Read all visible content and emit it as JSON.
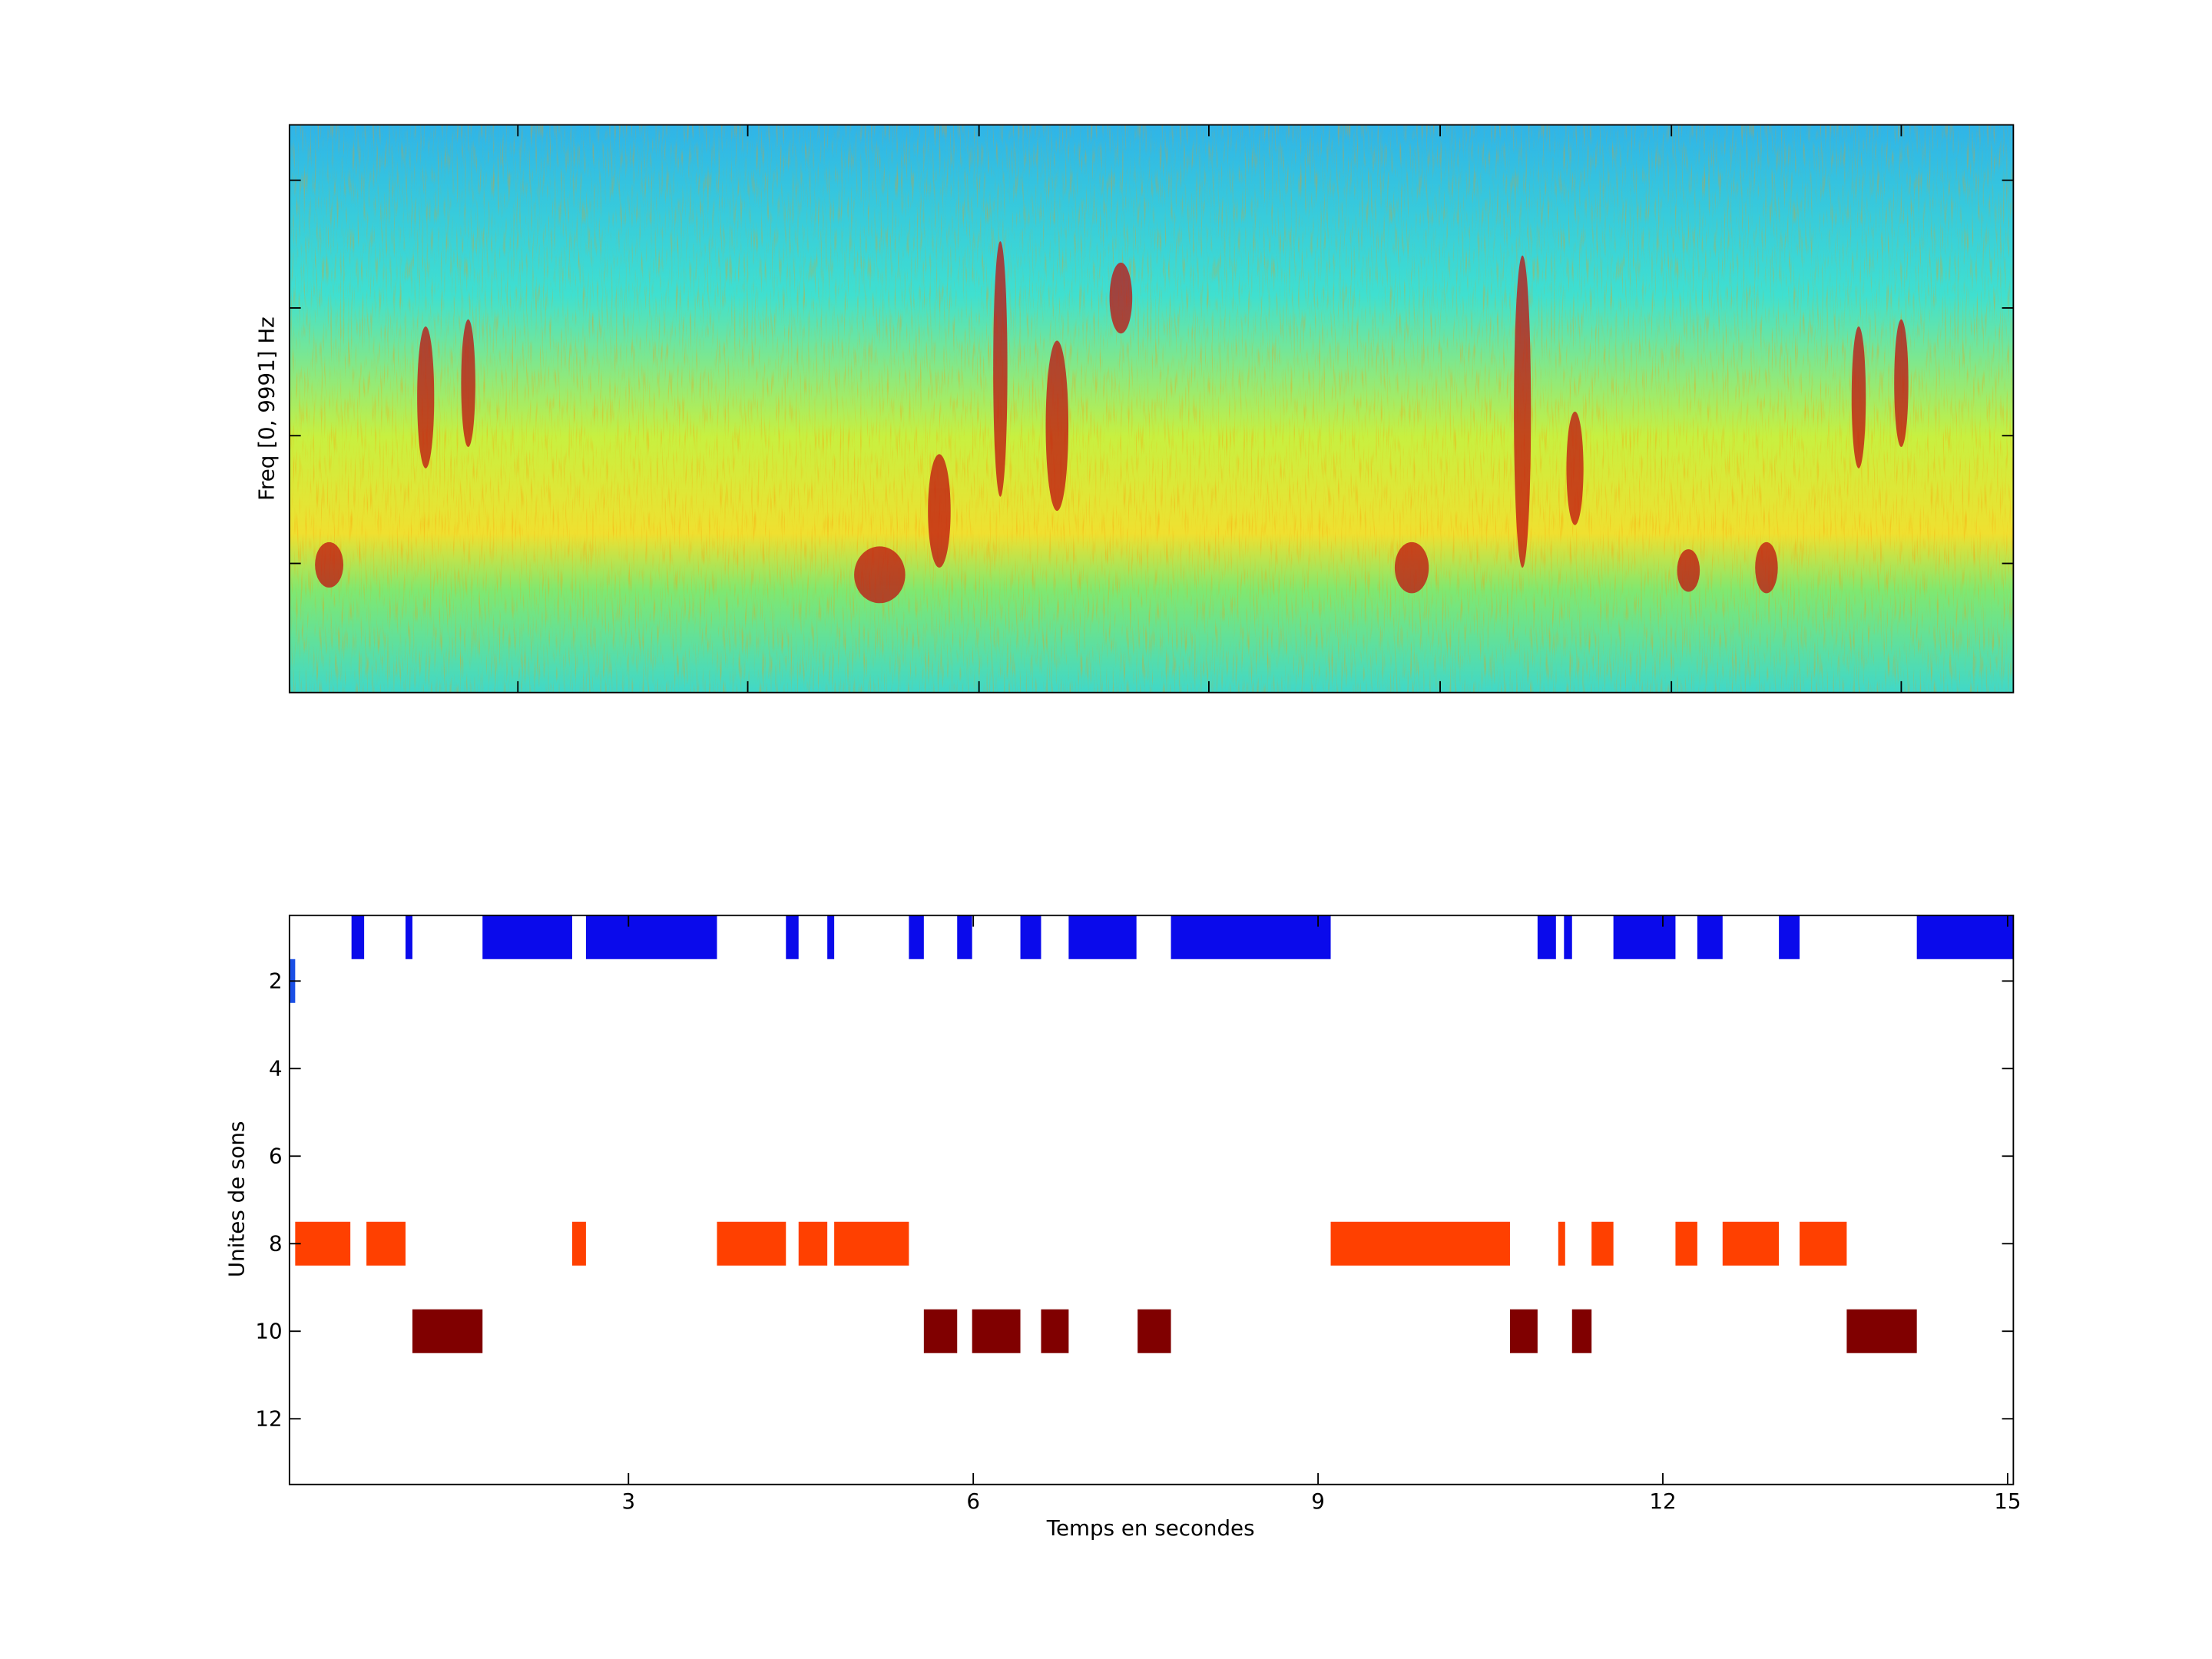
{
  "chart_data": [
    {
      "type": "spectrogram",
      "ylabel": "Freq [0, 9991] Hz"
    },
    {
      "type": "segments",
      "xlabel": "Temps en secondes",
      "ylabel": "Unites de sons",
      "xlim": [
        0.05,
        15.05
      ],
      "xticks": [
        3,
        6,
        9,
        12,
        15
      ],
      "ylim": [
        0.5,
        13.5
      ],
      "yticks": [
        2,
        4,
        6,
        8,
        10,
        12
      ],
      "y_reversed": true,
      "series": [
        {
          "row": 1,
          "color": "#0a0aeb",
          "segments": [
            [
              0.59,
              0.7
            ],
            [
              1.06,
              1.12
            ],
            [
              1.73,
              2.51
            ],
            [
              2.63,
              3.77
            ],
            [
              4.37,
              4.48
            ],
            [
              4.73,
              4.79
            ],
            [
              5.44,
              5.57
            ],
            [
              5.86,
              5.99
            ],
            [
              6.41,
              6.59
            ],
            [
              6.83,
              7.42
            ],
            [
              7.72,
              9.11
            ],
            [
              10.91,
              11.07
            ],
            [
              11.14,
              11.21
            ],
            [
              11.57,
              12.11
            ],
            [
              12.3,
              12.52
            ],
            [
              13.01,
              13.19
            ],
            [
              14.21,
              15.05
            ]
          ]
        },
        {
          "row": 2,
          "color": "#1a4fe6",
          "segments": [
            [
              0.05,
              0.1
            ]
          ]
        },
        {
          "row": 8,
          "color": "#ff4000",
          "segments": [
            [
              0.1,
              0.58
            ],
            [
              0.72,
              1.06
            ],
            [
              2.51,
              2.63
            ],
            [
              3.77,
              4.37
            ],
            [
              4.48,
              4.73
            ],
            [
              4.79,
              5.44
            ],
            [
              9.11,
              10.67
            ],
            [
              11.09,
              11.15
            ],
            [
              11.38,
              11.57
            ],
            [
              12.11,
              12.3
            ],
            [
              12.52,
              13.01
            ],
            [
              13.19,
              13.6
            ]
          ]
        },
        {
          "row": 10,
          "color": "#800000",
          "segments": [
            [
              1.12,
              1.73
            ],
            [
              5.57,
              5.86
            ],
            [
              5.99,
              6.41
            ],
            [
              6.59,
              6.83
            ],
            [
              7.43,
              7.72
            ],
            [
              10.67,
              10.91
            ],
            [
              11.21,
              11.38
            ],
            [
              13.6,
              14.21
            ]
          ]
        }
      ]
    }
  ]
}
